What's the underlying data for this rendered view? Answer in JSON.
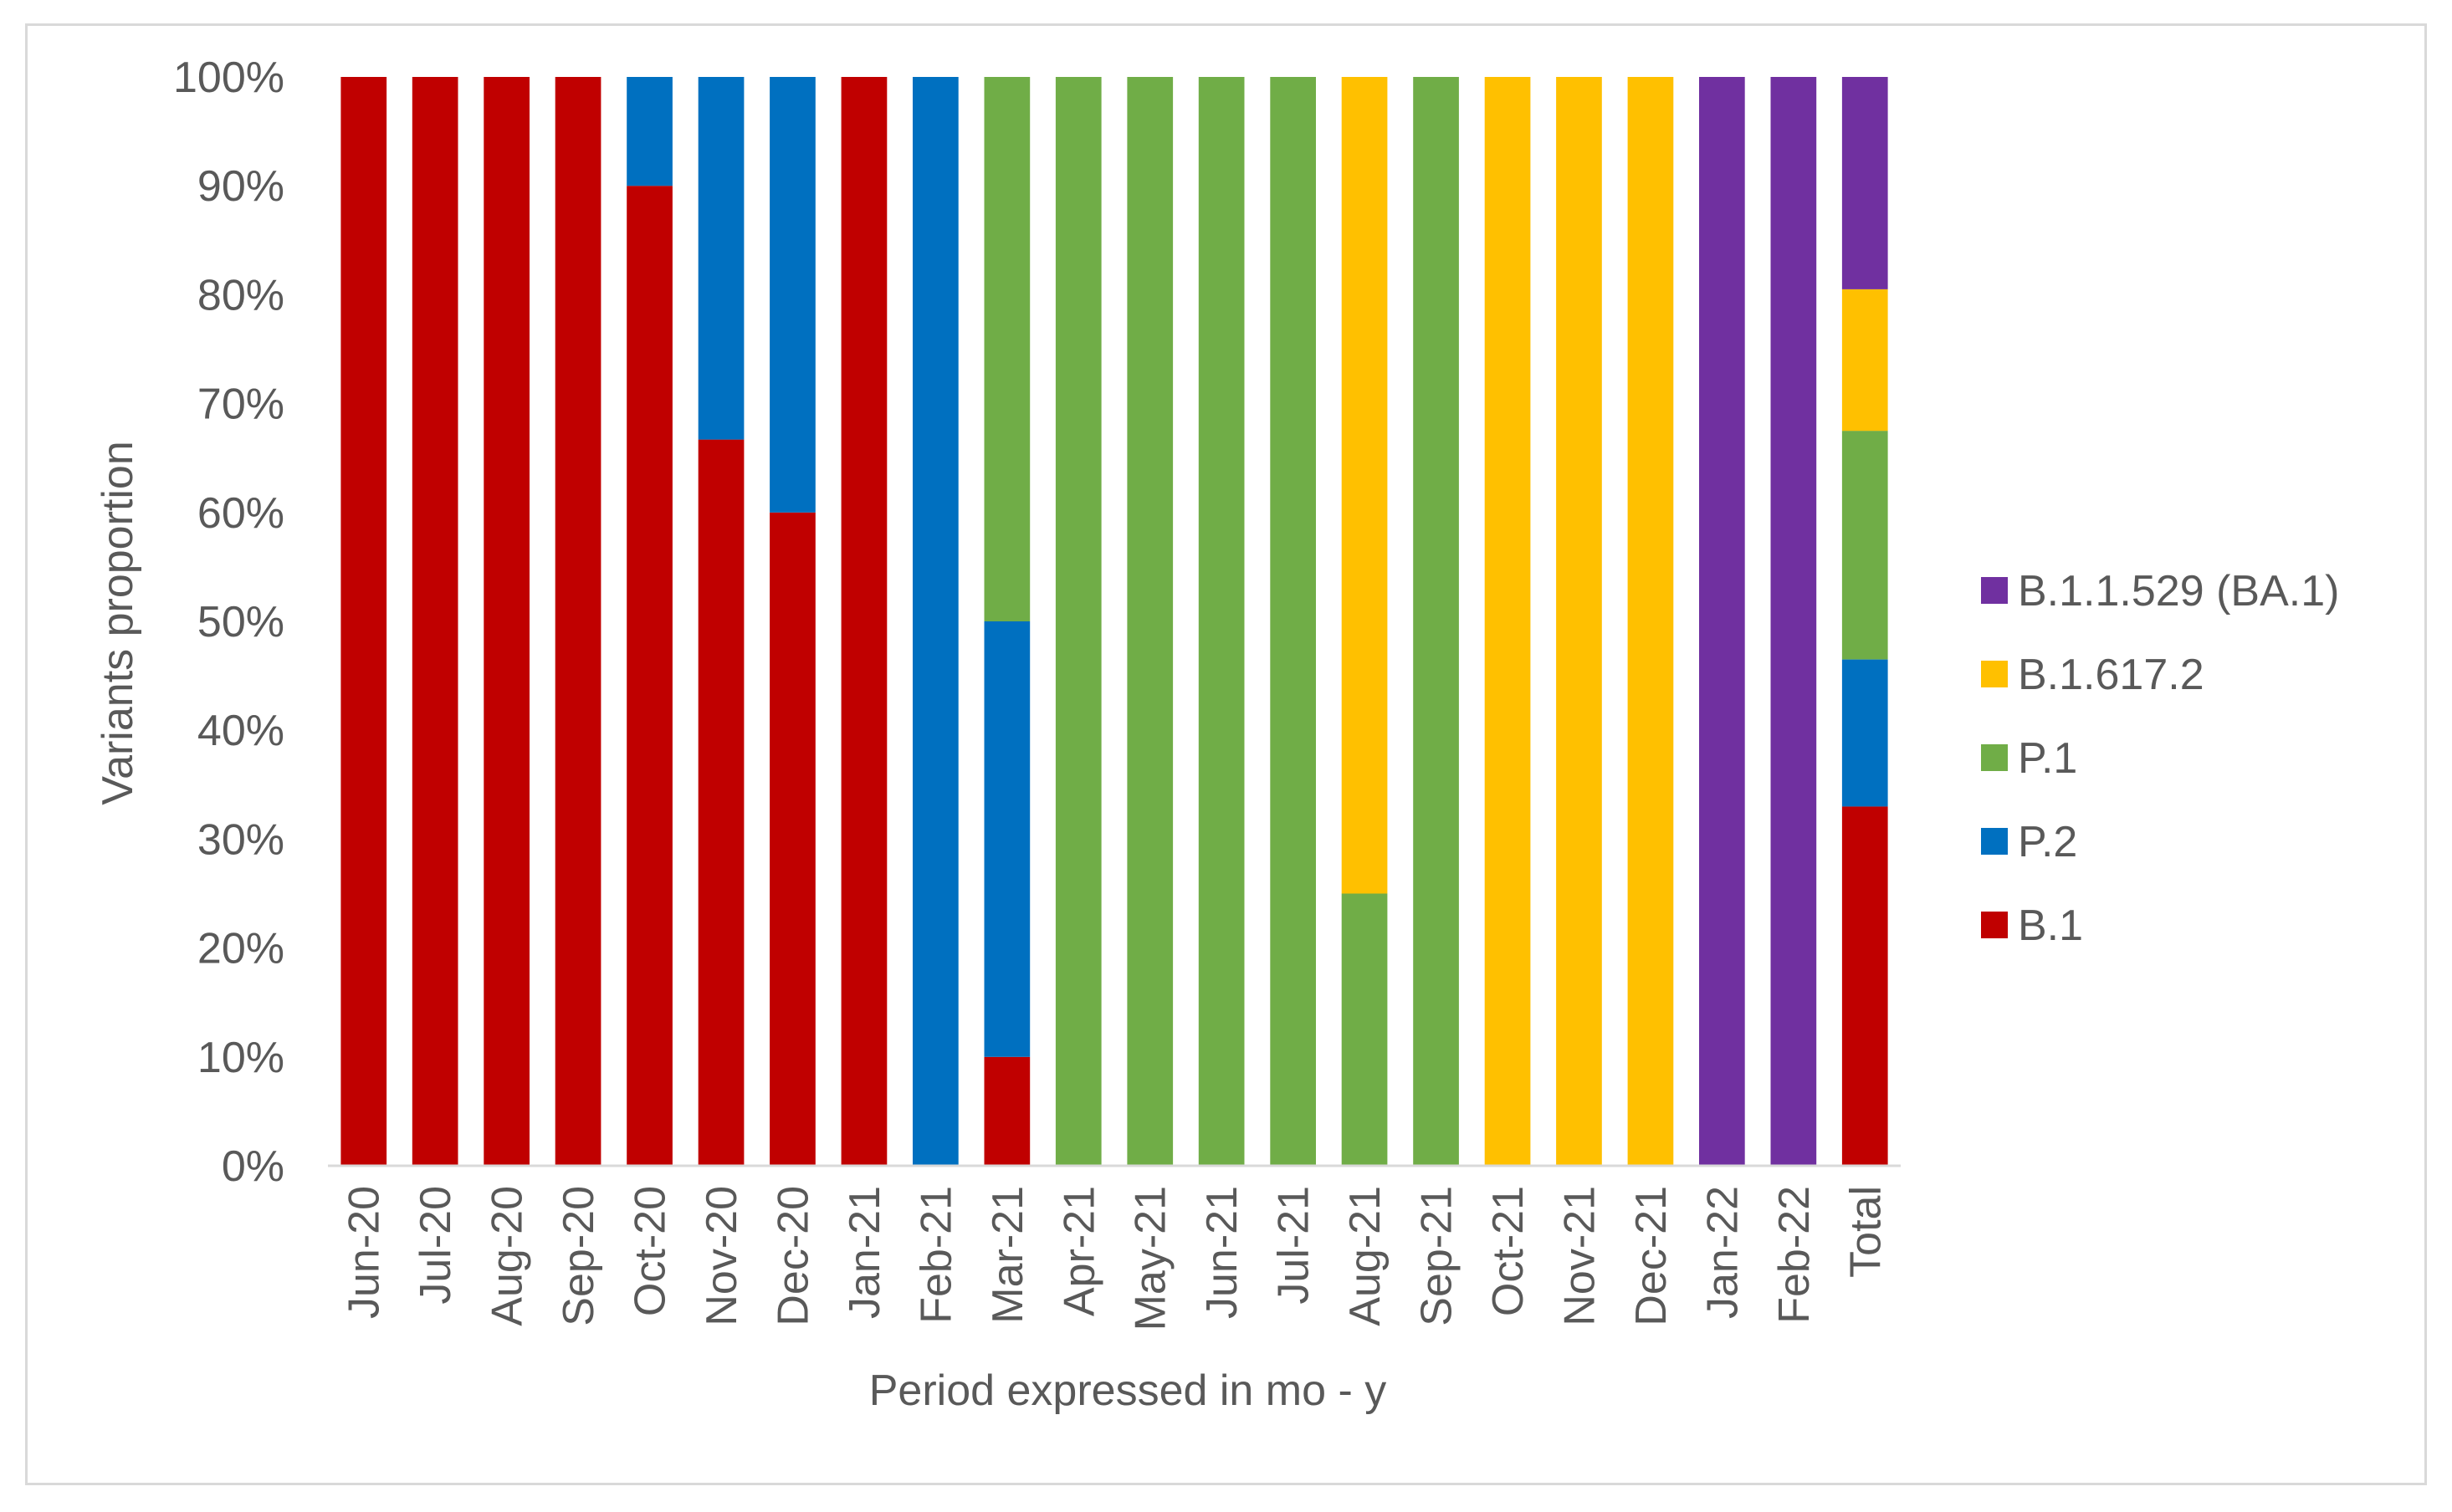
{
  "chart_data": {
    "type": "bar",
    "stacked": true,
    "categories": [
      "Jun-20",
      "Jul-20",
      "Aug-20",
      "Sep-20",
      "Oct-20",
      "Nov-20",
      "Dec-20",
      "Jan-21",
      "Feb-21",
      "Mar-21",
      "Apr-21",
      "May-21",
      "Jun-21",
      "Jul-21",
      "Aug-21",
      "Sep-21",
      "Oct-21",
      "Nov-21",
      "Dec-21",
      "Jan-22",
      "Feb-22",
      "Total"
    ],
    "series": [
      {
        "name": "B.1",
        "color": "#c00000",
        "values": [
          100,
          100,
          100,
          100,
          90,
          66.7,
          60,
          100,
          0,
          10,
          0,
          0,
          0,
          0,
          0,
          0,
          0,
          0,
          0,
          0,
          0,
          33
        ]
      },
      {
        "name": "P.2",
        "color": "#0070c0",
        "values": [
          0,
          0,
          0,
          0,
          10,
          33.3,
          40,
          0,
          100,
          40,
          0,
          0,
          0,
          0,
          0,
          0,
          0,
          0,
          0,
          0,
          0,
          13.5
        ]
      },
      {
        "name": "P.1",
        "color": "#70ad47",
        "values": [
          0,
          0,
          0,
          0,
          0,
          0,
          0,
          0,
          0,
          50,
          100,
          100,
          100,
          100,
          25,
          100,
          0,
          0,
          0,
          0,
          0,
          21
        ]
      },
      {
        "name": "B.1.617.2",
        "color": "#ffc000",
        "values": [
          0,
          0,
          0,
          0,
          0,
          0,
          0,
          0,
          0,
          0,
          0,
          0,
          0,
          0,
          75,
          0,
          100,
          100,
          100,
          0,
          0,
          13
        ]
      },
      {
        "name": "B.1.1.529 (BA.1)",
        "color": "#7030a0",
        "values": [
          0,
          0,
          0,
          0,
          0,
          0,
          0,
          0,
          0,
          0,
          0,
          0,
          0,
          0,
          0,
          0,
          0,
          0,
          0,
          100,
          100,
          19.5
        ]
      }
    ],
    "ylim": [
      0,
      100
    ],
    "yticks": [
      "0%",
      "10%",
      "20%",
      "30%",
      "40%",
      "50%",
      "60%",
      "70%",
      "80%",
      "90%",
      "100%"
    ],
    "xlabel": "Period expressed in mo - y",
    "ylabel": "Variants proportion",
    "legend_position": "right",
    "grid": false
  }
}
